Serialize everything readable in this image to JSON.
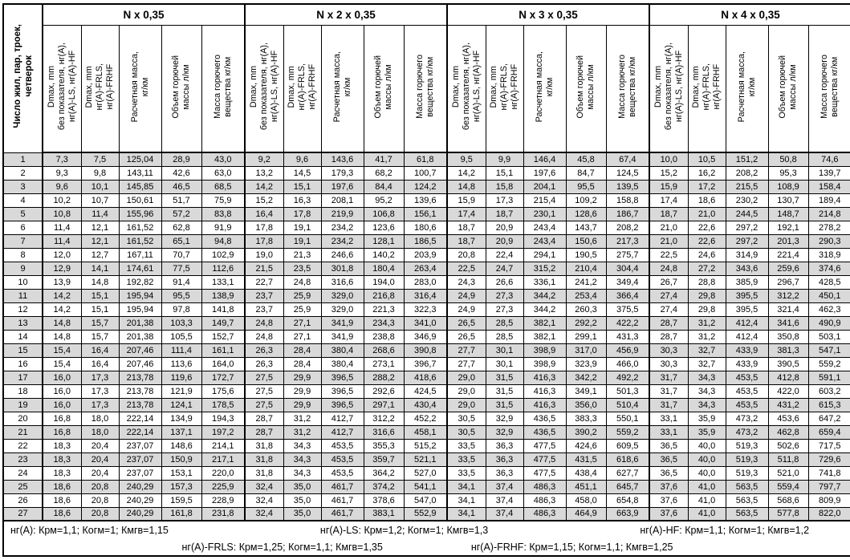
{
  "table": {
    "row_axis_label_lines": [
      "Число жил, пар, троек,",
      "четверок"
    ],
    "groups": [
      {
        "title": "N x 0,35"
      },
      {
        "title": "N x 2 x 0,35"
      },
      {
        "title": "N x 3 x 0,35"
      },
      {
        "title": "N x 4 x 0,35"
      }
    ],
    "sub_columns": [
      {
        "name": "dmax-base",
        "lines": [
          "Dmax, mm",
          "без показателя, нг(А),",
          "нг(А)-LS, нг(А)-HF"
        ]
      },
      {
        "name": "dmax-fr",
        "lines": [
          "Dmax, mm",
          "нг(А)-FRLS,",
          "нг(А)-FRHF"
        ]
      },
      {
        "name": "calc-mass",
        "lines": [
          "Расчетная масса,",
          "кг/км"
        ]
      },
      {
        "name": "combustible-volume",
        "lines": [
          "Объем горючей",
          "массы л/км"
        ]
      },
      {
        "name": "combustible-mass",
        "lines": [
          "Масса горючего",
          "вещества кг/км"
        ]
      }
    ],
    "rows": [
      {
        "n": "1",
        "values": [
          "7,3",
          "7,5",
          "125,04",
          "28,9",
          "43,0",
          "9,2",
          "9,6",
          "143,6",
          "41,7",
          "61,8",
          "9,5",
          "9,9",
          "146,4",
          "45,8",
          "67,4",
          "10,0",
          "10,5",
          "151,2",
          "50,8",
          "74,6"
        ]
      },
      {
        "n": "2",
        "values": [
          "9,3",
          "9,8",
          "143,11",
          "42,6",
          "63,0",
          "13,2",
          "14,5",
          "179,3",
          "68,2",
          "100,7",
          "14,2",
          "15,1",
          "197,6",
          "84,7",
          "124,5",
          "15,2",
          "16,2",
          "208,2",
          "95,3",
          "139,7"
        ]
      },
      {
        "n": "3",
        "values": [
          "9,6",
          "10,1",
          "145,85",
          "46,5",
          "68,5",
          "14,2",
          "15,1",
          "197,6",
          "84,4",
          "124,2",
          "14,8",
          "15,8",
          "204,1",
          "95,5",
          "139,5",
          "15,9",
          "17,2",
          "215,5",
          "108,9",
          "158,4"
        ]
      },
      {
        "n": "4",
        "values": [
          "10,2",
          "10,7",
          "150,61",
          "51,7",
          "75,9",
          "15,2",
          "16,3",
          "208,1",
          "95,2",
          "139,6",
          "15,9",
          "17,3",
          "215,4",
          "109,2",
          "158,8",
          "17,4",
          "18,6",
          "230,2",
          "130,7",
          "189,4"
        ]
      },
      {
        "n": "5",
        "values": [
          "10,8",
          "11,4",
          "155,96",
          "57,2",
          "83,8",
          "16,4",
          "17,8",
          "219,9",
          "106,8",
          "156,1",
          "17,4",
          "18,7",
          "230,1",
          "128,6",
          "186,7",
          "18,7",
          "21,0",
          "244,5",
          "148,7",
          "214,8"
        ]
      },
      {
        "n": "6",
        "values": [
          "11,4",
          "12,1",
          "161,52",
          "62,8",
          "91,9",
          "17,8",
          "19,1",
          "234,2",
          "123,6",
          "180,6",
          "18,7",
          "20,9",
          "243,4",
          "143,7",
          "208,2",
          "21,0",
          "22,6",
          "297,2",
          "192,1",
          "278,2"
        ]
      },
      {
        "n": "7",
        "values": [
          "11,4",
          "12,1",
          "161,52",
          "65,1",
          "94,8",
          "17,8",
          "19,1",
          "234,2",
          "128,1",
          "186,5",
          "18,7",
          "20,9",
          "243,4",
          "150,6",
          "217,3",
          "21,0",
          "22,6",
          "297,2",
          "201,3",
          "290,3"
        ]
      },
      {
        "n": "8",
        "values": [
          "12,0",
          "12,7",
          "167,11",
          "70,7",
          "102,9",
          "19,0",
          "21,3",
          "246,6",
          "140,2",
          "203,9",
          "20,8",
          "22,4",
          "294,1",
          "190,5",
          "275,7",
          "22,5",
          "24,6",
          "314,9",
          "221,4",
          "318,9"
        ]
      },
      {
        "n": "9",
        "values": [
          "12,9",
          "14,1",
          "174,61",
          "77,5",
          "112,6",
          "21,5",
          "23,5",
          "301,8",
          "180,4",
          "263,4",
          "22,5",
          "24,7",
          "315,2",
          "210,4",
          "304,4",
          "24,8",
          "27,2",
          "343,6",
          "259,6",
          "374,6"
        ]
      },
      {
        "n": "10",
        "values": [
          "13,9",
          "14,8",
          "192,82",
          "91,4",
          "133,1",
          "22,7",
          "24,8",
          "316,6",
          "194,0",
          "283,0",
          "24,3",
          "26,6",
          "336,1",
          "241,2",
          "349,4",
          "26,7",
          "28,8",
          "385,9",
          "296,7",
          "428,5"
        ]
      },
      {
        "n": "11",
        "values": [
          "14,2",
          "15,1",
          "195,94",
          "95,5",
          "138,9",
          "23,7",
          "25,9",
          "329,0",
          "216,8",
          "316,4",
          "24,9",
          "27,3",
          "344,2",
          "253,4",
          "366,4",
          "27,4",
          "29,8",
          "395,5",
          "312,2",
          "450,1"
        ]
      },
      {
        "n": "12",
        "values": [
          "14,2",
          "15,1",
          "195,94",
          "97,8",
          "141,8",
          "23,7",
          "25,9",
          "329,0",
          "221,3",
          "322,3",
          "24,9",
          "27,3",
          "344,2",
          "260,3",
          "375,5",
          "27,4",
          "29,8",
          "395,5",
          "321,4",
          "462,3"
        ]
      },
      {
        "n": "13",
        "values": [
          "14,8",
          "15,7",
          "201,38",
          "103,3",
          "149,7",
          "24,8",
          "27,1",
          "341,9",
          "234,3",
          "341,0",
          "26,5",
          "28,5",
          "382,1",
          "292,2",
          "422,2",
          "28,7",
          "31,2",
          "412,4",
          "341,6",
          "490,9"
        ]
      },
      {
        "n": "14",
        "values": [
          "14,8",
          "15,7",
          "201,38",
          "105,5",
          "152,7",
          "24,8",
          "27,1",
          "341,9",
          "238,8",
          "346,9",
          "26,5",
          "28,5",
          "382,1",
          "299,1",
          "431,3",
          "28,7",
          "31,2",
          "412,4",
          "350,8",
          "503,1"
        ]
      },
      {
        "n": "15",
        "values": [
          "15,4",
          "16,4",
          "207,46",
          "111,4",
          "161,1",
          "26,3",
          "28,4",
          "380,4",
          "268,6",
          "390,8",
          "27,7",
          "30,1",
          "398,9",
          "317,0",
          "456,9",
          "30,3",
          "32,7",
          "433,9",
          "381,3",
          "547,1"
        ]
      },
      {
        "n": "16",
        "values": [
          "15,4",
          "16,4",
          "207,46",
          "113,6",
          "164,0",
          "26,3",
          "28,4",
          "380,4",
          "273,1",
          "396,7",
          "27,7",
          "30,1",
          "398,9",
          "323,9",
          "466,0",
          "30,3",
          "32,7",
          "433,9",
          "390,5",
          "559,2"
        ]
      },
      {
        "n": "17",
        "values": [
          "16,0",
          "17,3",
          "213,78",
          "119,6",
          "172,7",
          "27,5",
          "29,9",
          "396,5",
          "288,2",
          "418,6",
          "29,0",
          "31,5",
          "416,3",
          "342,2",
          "492,2",
          "31,7",
          "34,3",
          "453,5",
          "412,8",
          "591,1"
        ]
      },
      {
        "n": "18",
        "values": [
          "16,0",
          "17,3",
          "213,78",
          "121,9",
          "175,6",
          "27,5",
          "29,9",
          "396,5",
          "292,6",
          "424,5",
          "29,0",
          "31,5",
          "416,3",
          "349,1",
          "501,3",
          "31,7",
          "34,3",
          "453,5",
          "422,0",
          "603,2"
        ]
      },
      {
        "n": "19",
        "values": [
          "16,0",
          "17,3",
          "213,78",
          "124,1",
          "178,5",
          "27,5",
          "29,9",
          "396,5",
          "297,1",
          "430,4",
          "29,0",
          "31,5",
          "416,3",
          "356,0",
          "510,4",
          "31,7",
          "34,3",
          "453,5",
          "431,2",
          "615,3"
        ]
      },
      {
        "n": "20",
        "values": [
          "16,8",
          "18,0",
          "222,14",
          "134,9",
          "194,3",
          "28,7",
          "31,2",
          "412,7",
          "312,2",
          "452,2",
          "30,5",
          "32,9",
          "436,5",
          "383,3",
          "550,1",
          "33,1",
          "35,9",
          "473,2",
          "453,6",
          "647,2"
        ]
      },
      {
        "n": "21",
        "values": [
          "16,8",
          "18,0",
          "222,14",
          "137,1",
          "197,2",
          "28,7",
          "31,2",
          "412,7",
          "316,6",
          "458,1",
          "30,5",
          "32,9",
          "436,5",
          "390,2",
          "559,2",
          "33,1",
          "35,9",
          "473,2",
          "462,8",
          "659,4"
        ]
      },
      {
        "n": "22",
        "values": [
          "18,3",
          "20,4",
          "237,07",
          "148,6",
          "214,1",
          "31,8",
          "34,3",
          "453,5",
          "355,3",
          "515,2",
          "33,5",
          "36,3",
          "477,5",
          "424,6",
          "609,5",
          "36,5",
          "40,0",
          "519,3",
          "502,6",
          "717,5"
        ]
      },
      {
        "n": "23",
        "values": [
          "18,3",
          "20,4",
          "237,07",
          "150,9",
          "217,1",
          "31,8",
          "34,3",
          "453,5",
          "359,7",
          "521,1",
          "33,5",
          "36,3",
          "477,5",
          "431,5",
          "618,6",
          "36,5",
          "40,0",
          "519,3",
          "511,8",
          "729,6"
        ]
      },
      {
        "n": "24",
        "values": [
          "18,3",
          "20,4",
          "237,07",
          "153,1",
          "220,0",
          "31,8",
          "34,3",
          "453,5",
          "364,2",
          "527,0",
          "33,5",
          "36,3",
          "477,5",
          "438,4",
          "627,7",
          "36,5",
          "40,0",
          "519,3",
          "521,0",
          "741,8"
        ]
      },
      {
        "n": "25",
        "values": [
          "18,6",
          "20,8",
          "240,29",
          "157,3",
          "225,9",
          "32,4",
          "35,0",
          "461,7",
          "374,2",
          "541,1",
          "34,1",
          "37,4",
          "486,3",
          "451,1",
          "645,7",
          "37,6",
          "41,0",
          "563,5",
          "559,4",
          "797,7"
        ]
      },
      {
        "n": "26",
        "values": [
          "18,6",
          "20,8",
          "240,29",
          "159,5",
          "228,9",
          "32,4",
          "35,0",
          "461,7",
          "378,6",
          "547,0",
          "34,1",
          "37,4",
          "486,3",
          "458,0",
          "654,8",
          "37,6",
          "41,0",
          "563,5",
          "568,6",
          "809,9"
        ]
      },
      {
        "n": "27",
        "values": [
          "18,6",
          "20,8",
          "240,29",
          "161,8",
          "231,8",
          "32,4",
          "35,0",
          "461,7",
          "383,1",
          "552,9",
          "34,1",
          "37,4",
          "486,3",
          "464,9",
          "663,9",
          "37,6",
          "41,0",
          "563,5",
          "577,8",
          "822,0"
        ]
      }
    ],
    "footer": {
      "line1": [
        "нг(А): Крм=1,1;  Когм=1;  Кмгв=1,15",
        "нг(А)-LS: Крм=1,2;  Когм=1;  Кмгв=1,3",
        "нг(А)-HF: Крм=1,1;  Когм=1;  Кмгв=1,2"
      ],
      "line2": [
        "нг(А)-FRLS: Крм=1,25;  Когм=1,1;  Кмгв=1,35",
        "нг(А)-FRHF: Крм=1,15;  Когм=1,1;  Кмгв=1,25"
      ]
    },
    "colors": {
      "stripe": "#d9d9d9",
      "border": "#000000",
      "background": "#ffffff",
      "text": "#000000"
    },
    "column_widths": {
      "row_number": 49,
      "group_columns": [
        48,
        47,
        53,
        50,
        54
      ]
    }
  }
}
